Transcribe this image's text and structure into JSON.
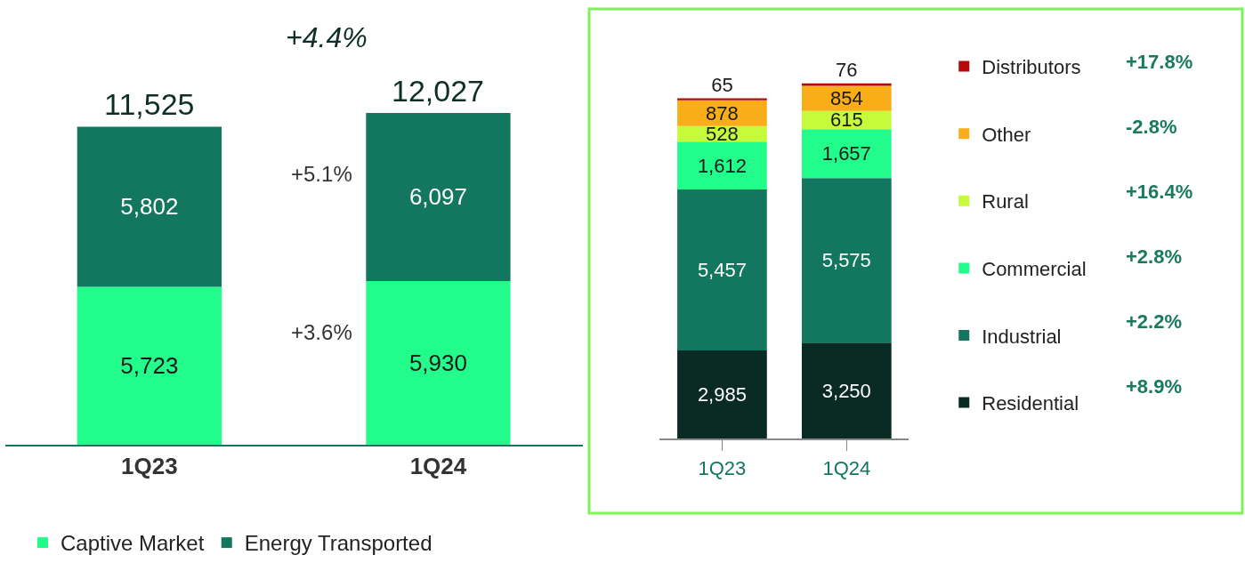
{
  "chart_data": [
    {
      "type": "bar",
      "stacked": true,
      "categories": [
        "1Q23",
        "1Q24"
      ],
      "series": [
        {
          "name": "Captive Market",
          "color": "#22fc8a",
          "values": [
            5723,
            5930
          ],
          "value_labels": [
            "5,723",
            "5,930"
          ]
        },
        {
          "name": "Energy Transported",
          "color": "#13775f",
          "values": [
            5802,
            6097
          ],
          "value_labels": [
            "5,802",
            "6,097"
          ]
        }
      ],
      "totals": [
        "11,525",
        "12,027"
      ],
      "annotations": [
        "+4.4%",
        "+5.1%",
        "+3.6%"
      ],
      "legend": "bottom",
      "tick_labels": "x"
    },
    {
      "type": "bar",
      "stacked": true,
      "categories": [
        "1Q23",
        "1Q24"
      ],
      "series": [
        {
          "name": "Residential",
          "color": "#0a2b24",
          "values": [
            2985,
            3250
          ],
          "value_labels": [
            "2,985",
            "3,250"
          ]
        },
        {
          "name": "Industrial",
          "color": "#13775f",
          "values": [
            5457,
            5575
          ],
          "value_labels": [
            "5,457",
            "5,575"
          ]
        },
        {
          "name": "Commercial",
          "color": "#22fc8a",
          "values": [
            1612,
            1657
          ],
          "value_labels": [
            "1,612",
            "1,657"
          ]
        },
        {
          "name": "Rural",
          "color": "#c6fb3c",
          "values": [
            528,
            615
          ],
          "value_labels": [
            "528",
            "615"
          ]
        },
        {
          "name": "Other",
          "color": "#f9ad19",
          "values": [
            878,
            854
          ],
          "value_labels": [
            "878",
            "854"
          ]
        },
        {
          "name": "Distributors",
          "color": "#b50808",
          "values": [
            65,
            76
          ],
          "value_labels": [
            "65",
            "76"
          ]
        }
      ],
      "annotations": [
        "+17.8%",
        "-2.8%",
        "+16.4%",
        "+2.8%",
        "+2.2%",
        "+8.9%"
      ],
      "legend": "right",
      "tick_labels": "x"
    }
  ]
}
